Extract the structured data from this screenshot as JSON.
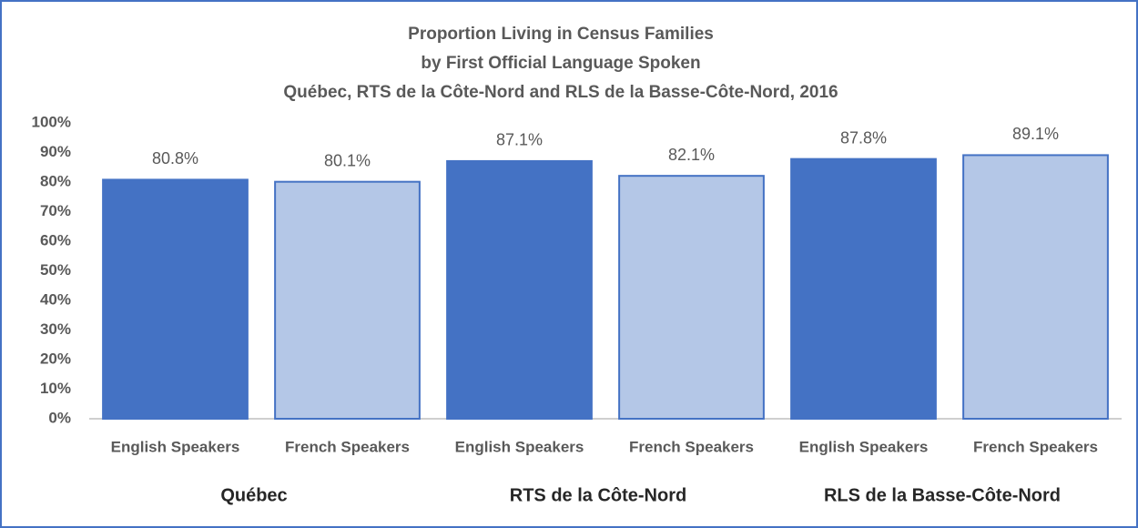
{
  "chart_data": {
    "type": "bar",
    "title": [
      "Proportion  Living in Census Families",
      "by First Official Language Spoken",
      "Québec, RTS de la Côte-Nord and RLS de la Basse-Côte-Nord, 2016"
    ],
    "colors": [
      "#4472c4",
      "#b4c7e7"
    ],
    "groups": [
      {
        "name": "Québec",
        "categories": [
          "English Speakers",
          "French Speakers"
        ],
        "values": [
          80.8,
          80.1
        ],
        "value_labels": [
          "80.8%",
          "80.1%"
        ]
      },
      {
        "name": "RTS de la Côte-Nord",
        "categories": [
          "English Speakers",
          "French Speakers"
        ],
        "values": [
          87.1,
          82.1
        ],
        "value_labels": [
          "87.1%",
          "82.1%"
        ]
      },
      {
        "name": "RLS de la Basse-Côte-Nord",
        "categories": [
          "English Speakers",
          "French Speakers"
        ],
        "values": [
          87.8,
          89.1
        ],
        "value_labels": [
          "87.8%",
          "89.1%"
        ]
      }
    ],
    "ylim": [
      0,
      100
    ],
    "yticks": [
      {
        "value": 0,
        "label": "0%"
      },
      {
        "value": 10,
        "label": "10%"
      },
      {
        "value": 20,
        "label": "20%"
      },
      {
        "value": 30,
        "label": "30%"
      },
      {
        "value": 40,
        "label": "40%"
      },
      {
        "value": 50,
        "label": "50%"
      },
      {
        "value": 60,
        "label": "60%"
      },
      {
        "value": 70,
        "label": "70%"
      },
      {
        "value": 80,
        "label": "80%"
      },
      {
        "value": 90,
        "label": "90%"
      },
      {
        "value": 100,
        "label": "100%"
      }
    ],
    "grid": false
  }
}
